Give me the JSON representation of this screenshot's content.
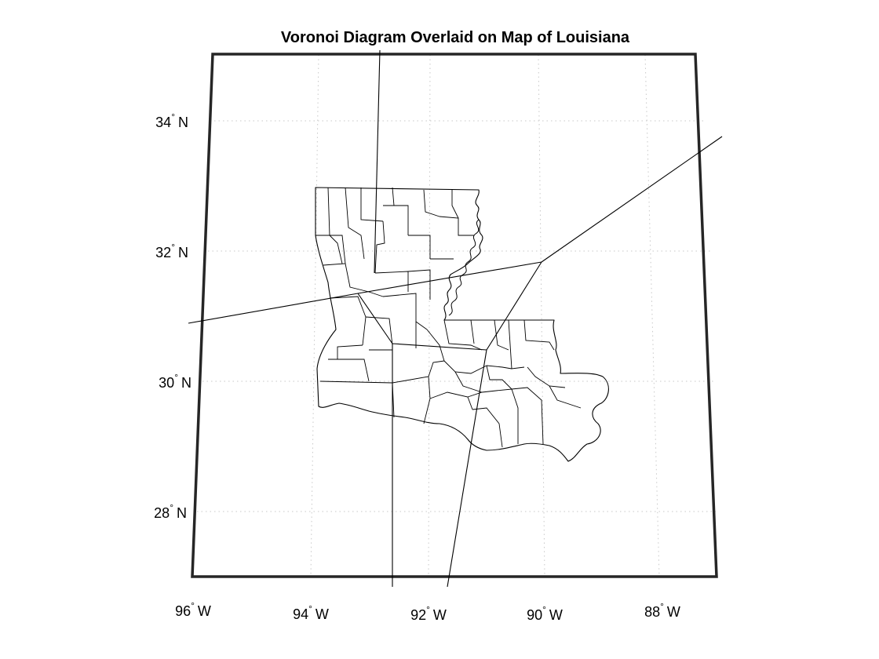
{
  "map": {
    "title": "Voronoi Diagram Overlaid on Map of Louisiana",
    "lat_labels": [
      {
        "value": "34",
        "hemi": "N"
      },
      {
        "value": "32",
        "hemi": "N"
      },
      {
        "value": "30",
        "hemi": "N"
      },
      {
        "value": "28",
        "hemi": "N"
      }
    ],
    "lon_labels": [
      {
        "value": "96",
        "hemi": "W"
      },
      {
        "value": "94",
        "hemi": "W"
      },
      {
        "value": "92",
        "hemi": "W"
      },
      {
        "value": "90",
        "hemi": "W"
      },
      {
        "value": "88",
        "hemi": "W"
      }
    ],
    "degree_symbol": "°",
    "graticule": true,
    "colors": {
      "line": "#000000",
      "frame": "#262626",
      "grid": "#c8c8c8",
      "background": "#ffffff"
    }
  }
}
